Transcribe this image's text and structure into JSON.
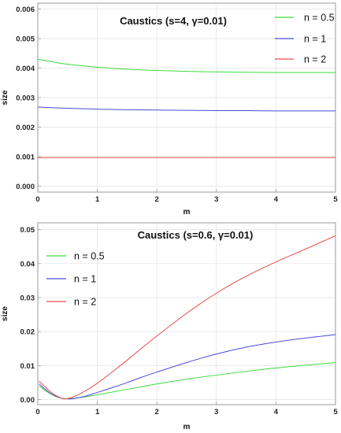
{
  "chart_data": [
    {
      "type": "line",
      "title": "Caustics (s=4, γ=0.01)",
      "xlabel": "m",
      "ylabel": "size",
      "xlim": [
        0,
        5
      ],
      "ylim": [
        -0.0002,
        0.0062
      ],
      "x_ticks": [
        0,
        1,
        2,
        3,
        4,
        5
      ],
      "x_tick_labels": [
        "0",
        "1",
        "2",
        "3",
        "4",
        "5"
      ],
      "y_ticks": [
        0.0,
        0.001,
        0.002,
        0.003,
        0.004,
        0.005,
        0.006
      ],
      "y_tick_labels": [
        "0.000",
        "0.001",
        "0.002",
        "0.003",
        "0.004",
        "0.005",
        "0.006"
      ],
      "grid": true,
      "legend_position": "top-right",
      "series": [
        {
          "name": "n = 0.5",
          "color": "#3cdc3c",
          "x": [
            0,
            0.25,
            0.5,
            1,
            1.5,
            2,
            2.5,
            3,
            3.5,
            4,
            4.5,
            5
          ],
          "y": [
            0.0043,
            0.00421,
            0.00413,
            0.00403,
            0.00396,
            0.00392,
            0.00389,
            0.00387,
            0.00386,
            0.00385,
            0.00385,
            0.00385
          ]
        },
        {
          "name": "n = 1",
          "color": "#4a4ad8",
          "x": [
            0,
            0.5,
            1,
            1.5,
            2,
            2.5,
            3,
            3.5,
            4,
            4.5,
            5
          ],
          "y": [
            0.00268,
            0.00264,
            0.00261,
            0.00259,
            0.00258,
            0.00257,
            0.00256,
            0.00256,
            0.00255,
            0.00255,
            0.00255
          ]
        },
        {
          "name": "n = 2",
          "color": "#ee4a4a",
          "x": [
            0,
            1,
            2,
            3,
            4,
            5
          ],
          "y": [
            0.00097,
            0.00097,
            0.00097,
            0.00097,
            0.00097,
            0.00097
          ]
        }
      ]
    },
    {
      "type": "line",
      "title": "Caustics (s=0.6, γ=0.01)",
      "xlabel": "m",
      "ylabel": "size",
      "xlim": [
        0,
        5
      ],
      "ylim": [
        -0.0015,
        0.052
      ],
      "x_ticks": [
        0,
        1,
        2,
        3,
        4,
        5
      ],
      "x_tick_labels": [
        "0",
        "1",
        "2",
        "3",
        "4",
        "5"
      ],
      "y_ticks": [
        0.0,
        0.01,
        0.02,
        0.03,
        0.04,
        0.05
      ],
      "y_tick_labels": [
        "0.00",
        "0.01",
        "0.02",
        "0.03",
        "0.04",
        "0.05"
      ],
      "grid": true,
      "legend_position": "top-left",
      "series": [
        {
          "name": "n = 0.5",
          "color": "#3cdc3c",
          "x": [
            0.02,
            0.1,
            0.2,
            0.3,
            0.4,
            0.5,
            0.6,
            0.8,
            1.0,
            1.25,
            1.5,
            1.75,
            2.0,
            2.5,
            3.0,
            3.5,
            4.0,
            4.5,
            5.0
          ],
          "y": [
            0.004,
            0.003,
            0.0018,
            0.0009,
            0.0004,
            0.0002,
            0.0004,
            0.0008,
            0.0014,
            0.0022,
            0.003,
            0.0038,
            0.0046,
            0.006,
            0.0072,
            0.0083,
            0.0093,
            0.0101,
            0.0109
          ]
        },
        {
          "name": "n = 1",
          "color": "#4a4ad8",
          "x": [
            0.02,
            0.1,
            0.2,
            0.3,
            0.4,
            0.5,
            0.6,
            0.8,
            1.0,
            1.25,
            1.5,
            1.75,
            2.0,
            2.5,
            3.0,
            3.5,
            4.0,
            4.5,
            5.0
          ],
          "y": [
            0.0046,
            0.0034,
            0.002,
            0.001,
            0.0004,
            0.0002,
            0.0003,
            0.001,
            0.0021,
            0.0035,
            0.005,
            0.0066,
            0.0081,
            0.0109,
            0.0134,
            0.0154,
            0.0169,
            0.0181,
            0.0191
          ]
        },
        {
          "name": "n = 2",
          "color": "#ee4a4a",
          "x": [
            0.02,
            0.1,
            0.2,
            0.3,
            0.4,
            0.45,
            0.55,
            0.7,
            0.9,
            1.1,
            1.3,
            1.5,
            1.75,
            2.0,
            2.5,
            3.0,
            3.5,
            4.0,
            4.5,
            5.0
          ],
          "y": [
            0.0054,
            0.0041,
            0.0025,
            0.0012,
            0.0004,
            0.0002,
            0.0005,
            0.0016,
            0.0036,
            0.0061,
            0.0088,
            0.0116,
            0.0152,
            0.0187,
            0.0254,
            0.0313,
            0.0363,
            0.0405,
            0.0443,
            0.0482
          ]
        }
      ]
    }
  ]
}
